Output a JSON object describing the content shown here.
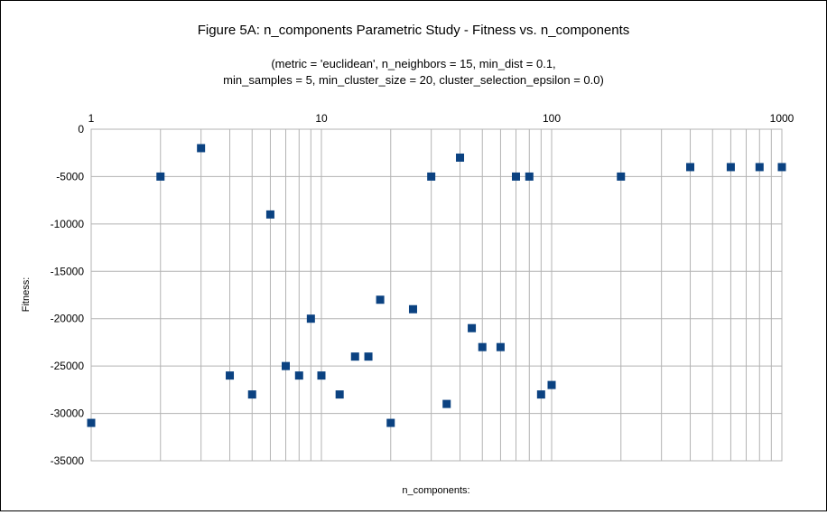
{
  "chart_data": {
    "type": "scatter",
    "title": "Figure 5A: n_components Parametric Study - Fitness vs. n_components",
    "subtitle_lines": [
      "(metric = 'euclidean', n_neighbors = 15, min_dist = 0.1,",
      "min_samples = 5, min_cluster_size = 20, cluster_selection_epsilon = 0.0)"
    ],
    "xlabel": "n_components:",
    "ylabel": "Fitness:",
    "x_scale": "log",
    "xlim": [
      1,
      1000
    ],
    "ylim": [
      -35000,
      0
    ],
    "x_tick_labels": [
      "1",
      "10",
      "100",
      "1000"
    ],
    "y_ticks": [
      0,
      -5000,
      -10000,
      -15000,
      -20000,
      -25000,
      -30000,
      -35000
    ],
    "y_tick_labels": [
      "0",
      "-5000",
      "-10000",
      "-15000",
      "-20000",
      "-25000",
      "-30000",
      "-35000"
    ],
    "grid": true,
    "legend": "none",
    "marker": "square",
    "marker_color": "#0b4281",
    "grid_color": "#b3b3b3",
    "points": [
      {
        "x": 1,
        "y": -31000
      },
      {
        "x": 2,
        "y": -5000
      },
      {
        "x": 3,
        "y": -2000
      },
      {
        "x": 4,
        "y": -26000
      },
      {
        "x": 5,
        "y": -28000
      },
      {
        "x": 6,
        "y": -9000
      },
      {
        "x": 7,
        "y": -25000
      },
      {
        "x": 8,
        "y": -26000
      },
      {
        "x": 9,
        "y": -20000
      },
      {
        "x": 10,
        "y": -26000
      },
      {
        "x": 12,
        "y": -28000
      },
      {
        "x": 14,
        "y": -24000
      },
      {
        "x": 16,
        "y": -24000
      },
      {
        "x": 18,
        "y": -18000
      },
      {
        "x": 20,
        "y": -31000
      },
      {
        "x": 25,
        "y": -19000
      },
      {
        "x": 30,
        "y": -5000
      },
      {
        "x": 35,
        "y": -29000
      },
      {
        "x": 40,
        "y": -3000
      },
      {
        "x": 45,
        "y": -21000
      },
      {
        "x": 50,
        "y": -23000
      },
      {
        "x": 60,
        "y": -23000
      },
      {
        "x": 70,
        "y": -5000
      },
      {
        "x": 80,
        "y": -5000
      },
      {
        "x": 90,
        "y": -28000
      },
      {
        "x": 100,
        "y": -27000
      },
      {
        "x": 200,
        "y": -5000
      },
      {
        "x": 400,
        "y": -4000
      },
      {
        "x": 600,
        "y": -4000
      },
      {
        "x": 800,
        "y": -4000
      },
      {
        "x": 1000,
        "y": -4000
      }
    ]
  }
}
